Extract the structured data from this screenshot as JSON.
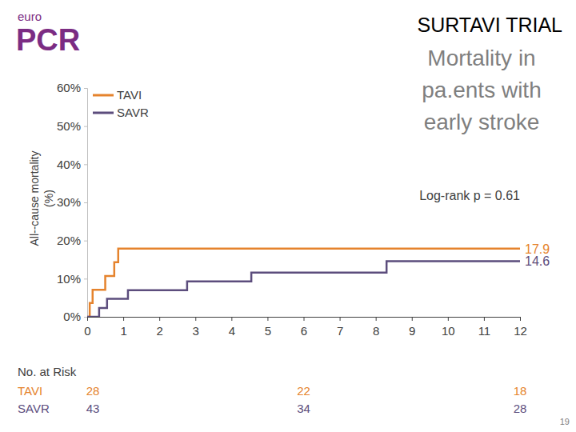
{
  "page": {
    "logo": [
      "euro",
      "PCR"
    ],
    "number": 19
  },
  "chart_data": {
    "type": "step",
    "title": "SURTAVI TRIAL",
    "subtitle": [
      "Mortality in",
      "pa.ents with",
      "early stroke"
    ],
    "ylabel": [
      "All-‐cause mortality",
      "(%)"
    ],
    "xlim": [
      0,
      12
    ],
    "xticks": [
      0,
      1,
      2,
      3,
      4,
      5,
      6,
      7,
      8,
      9,
      10,
      11,
      12
    ],
    "ylim": [
      0,
      60
    ],
    "yticks": [
      {
        "value": 0,
        "label": "0%"
      },
      {
        "value": 10,
        "label": "10%"
      },
      {
        "value": 20,
        "label": "20%"
      },
      {
        "value": 30,
        "label": "30%"
      },
      {
        "value": 40,
        "label": "40%"
      },
      {
        "value": 50,
        "label": "50%"
      },
      {
        "value": 60,
        "label": "60%"
      }
    ],
    "grid": false,
    "legend": "upper left",
    "annotations": [
      {
        "text": "Log-rank p = 0.61"
      }
    ],
    "series": [
      {
        "name": "TAVI",
        "color": "#e5832d",
        "line_style": "solid",
        "x": [
          0,
          0.07,
          0.15,
          0.5,
          0.75,
          0.86,
          12
        ],
        "values": [
          0,
          3.6,
          7.1,
          10.7,
          14.3,
          17.9,
          17.9
        ],
        "value_labels": [
          null,
          null,
          null,
          null,
          null,
          null,
          "17.9"
        ]
      },
      {
        "name": "SAVR",
        "color": "#5c4d7d",
        "line_style": "solid",
        "x": [
          0,
          0.33,
          0.55,
          1.13,
          2.77,
          4.55,
          8.3,
          12
        ],
        "values": [
          0,
          2.3,
          4.7,
          7.0,
          9.3,
          11.6,
          14.6,
          14.6
        ],
        "value_labels": [
          null,
          null,
          null,
          null,
          null,
          null,
          null,
          "14.6"
        ]
      }
    ],
    "risk_table": {
      "title": "No. at Risk",
      "x": [
        0,
        6,
        12
      ],
      "rows": [
        {
          "name": "TAVI",
          "values": [
            28,
            22,
            18
          ]
        },
        {
          "name": "SAVR",
          "values": [
            43,
            34,
            28
          ]
        }
      ]
    }
  }
}
